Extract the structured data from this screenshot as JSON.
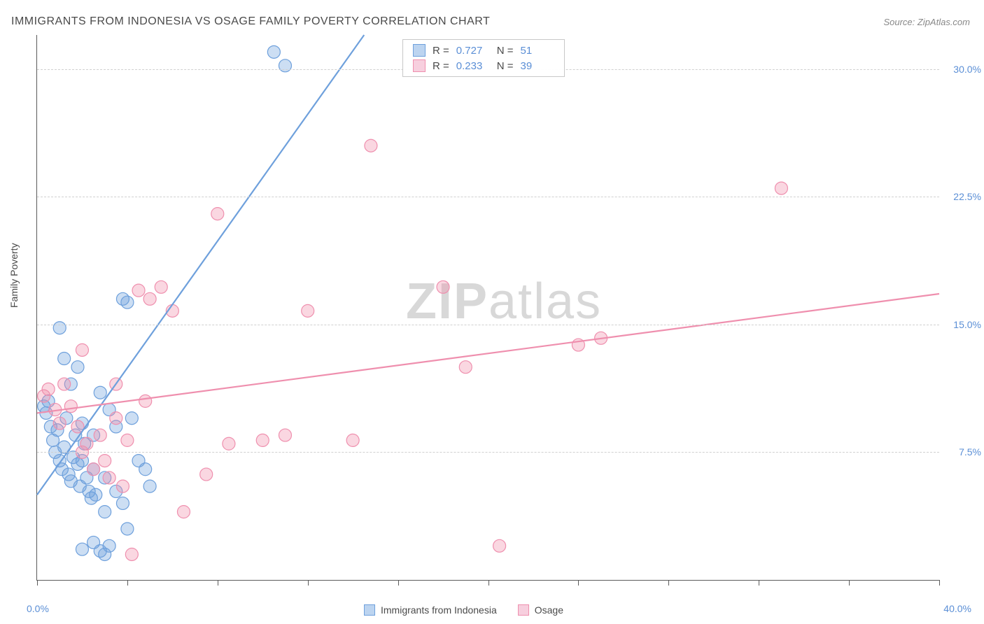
{
  "title": "IMMIGRANTS FROM INDONESIA VS OSAGE FAMILY POVERTY CORRELATION CHART",
  "source_label": "Source: ",
  "source_value": "ZipAtlas.com",
  "ylabel": "Family Poverty",
  "watermark_bold": "ZIP",
  "watermark_rest": "atlas",
  "chart": {
    "type": "scatter",
    "xlim": [
      0,
      40
    ],
    "ylim": [
      0,
      32
    ],
    "xunit": "%",
    "yunit": "%",
    "yticks": [
      7.5,
      15.0,
      22.5,
      30.0
    ],
    "ytick_labels": [
      "7.5%",
      "15.0%",
      "22.5%",
      "30.0%"
    ],
    "xticks_minor": [
      0,
      4,
      8,
      12,
      16,
      20,
      24,
      28,
      32,
      36,
      40
    ],
    "xmin_label": "0.0%",
    "xmax_label": "40.0%",
    "background_color": "#ffffff",
    "grid_color": "#d0d0d0",
    "axis_color": "#5a5a5a",
    "label_color": "#5b8fd6",
    "marker_radius": 9,
    "marker_stroke_width": 1.2,
    "line_width": 2.2,
    "series": [
      {
        "name": "Immigrants from Indonesia",
        "color_fill": "rgba(110,160,220,0.35)",
        "color_stroke": "#6ea0dc",
        "swatch_fill": "#bcd4f0",
        "swatch_border": "#6ea0dc",
        "R": "0.727",
        "N": "51",
        "trend": {
          "x1": 0,
          "y1": 5.0,
          "x2": 14.5,
          "y2": 32.0
        },
        "points": [
          [
            0.3,
            10.2
          ],
          [
            0.4,
            9.8
          ],
          [
            0.5,
            10.5
          ],
          [
            0.6,
            9.0
          ],
          [
            0.7,
            8.2
          ],
          [
            0.8,
            7.5
          ],
          [
            0.9,
            8.8
          ],
          [
            1.0,
            7.0
          ],
          [
            1.1,
            6.5
          ],
          [
            1.2,
            7.8
          ],
          [
            1.3,
            9.5
          ],
          [
            1.4,
            6.2
          ],
          [
            1.5,
            5.8
          ],
          [
            1.6,
            7.2
          ],
          [
            1.7,
            8.5
          ],
          [
            1.8,
            6.8
          ],
          [
            1.9,
            5.5
          ],
          [
            2.0,
            7.0
          ],
          [
            2.1,
            8.0
          ],
          [
            2.2,
            6.0
          ],
          [
            2.3,
            5.2
          ],
          [
            2.4,
            4.8
          ],
          [
            2.5,
            6.5
          ],
          [
            2.6,
            5.0
          ],
          [
            2.8,
            1.7
          ],
          [
            3.0,
            1.5
          ],
          [
            3.2,
            2.0
          ],
          [
            1.0,
            14.8
          ],
          [
            1.2,
            13.0
          ],
          [
            1.5,
            11.5
          ],
          [
            2.0,
            9.2
          ],
          [
            2.5,
            8.5
          ],
          [
            3.0,
            6.0
          ],
          [
            3.5,
            5.2
          ],
          [
            3.8,
            16.5
          ],
          [
            4.0,
            16.3
          ],
          [
            4.2,
            9.5
          ],
          [
            4.5,
            7.0
          ],
          [
            4.8,
            6.5
          ],
          [
            5.0,
            5.5
          ],
          [
            2.8,
            11.0
          ],
          [
            3.2,
            10.0
          ],
          [
            3.5,
            9.0
          ],
          [
            3.8,
            4.5
          ],
          [
            4.0,
            3.0
          ],
          [
            10.5,
            31.0
          ],
          [
            11.0,
            30.2
          ],
          [
            2.0,
            1.8
          ],
          [
            2.5,
            2.2
          ],
          [
            3.0,
            4.0
          ],
          [
            1.8,
            12.5
          ]
        ]
      },
      {
        "name": "Osage",
        "color_fill": "rgba(240,140,170,0.35)",
        "color_stroke": "#ef8fae",
        "swatch_fill": "#f7cfde",
        "swatch_border": "#ef8fae",
        "R": "0.233",
        "N": "39",
        "trend": {
          "x1": 0,
          "y1": 9.8,
          "x2": 40,
          "y2": 16.8
        },
        "points": [
          [
            0.3,
            10.8
          ],
          [
            0.5,
            11.2
          ],
          [
            0.8,
            10.0
          ],
          [
            1.0,
            9.2
          ],
          [
            1.2,
            11.5
          ],
          [
            1.5,
            10.2
          ],
          [
            1.8,
            9.0
          ],
          [
            2.0,
            7.5
          ],
          [
            2.2,
            8.0
          ],
          [
            2.5,
            6.5
          ],
          [
            2.8,
            8.5
          ],
          [
            3.0,
            7.0
          ],
          [
            3.2,
            6.0
          ],
          [
            3.5,
            9.5
          ],
          [
            3.8,
            5.5
          ],
          [
            4.0,
            8.2
          ],
          [
            4.2,
            1.5
          ],
          [
            4.5,
            17.0
          ],
          [
            5.0,
            16.5
          ],
          [
            5.5,
            17.2
          ],
          [
            6.0,
            15.8
          ],
          [
            6.5,
            4.0
          ],
          [
            7.5,
            6.2
          ],
          [
            8.0,
            21.5
          ],
          [
            8.5,
            8.0
          ],
          [
            10.0,
            8.2
          ],
          [
            11.0,
            8.5
          ],
          [
            12.0,
            15.8
          ],
          [
            14.0,
            8.2
          ],
          [
            14.8,
            25.5
          ],
          [
            18.0,
            17.2
          ],
          [
            19.0,
            12.5
          ],
          [
            20.5,
            2.0
          ],
          [
            24.0,
            13.8
          ],
          [
            25.0,
            14.2
          ],
          [
            33.0,
            23.0
          ],
          [
            2.0,
            13.5
          ],
          [
            3.5,
            11.5
          ],
          [
            4.8,
            10.5
          ]
        ]
      }
    ]
  },
  "legend_top": {
    "r_label": "R =",
    "n_label": "N ="
  }
}
